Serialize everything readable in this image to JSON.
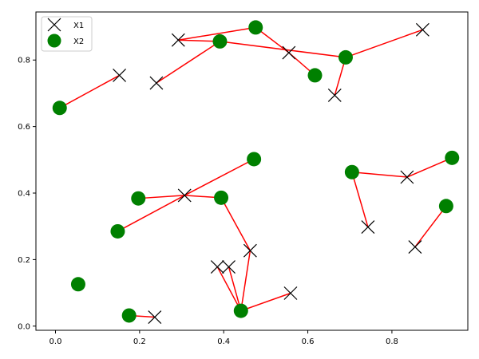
{
  "chart_data": {
    "type": "scatter",
    "xlim": [
      -0.0465,
      0.9805
    ],
    "ylim": [
      -0.0125,
      0.9445
    ],
    "grid": false,
    "legend_placement": "top-left",
    "x_ticks": [
      "0.0",
      "0.2",
      "0.4",
      "0.6",
      "0.8"
    ],
    "y_ticks": [
      "0.0",
      "0.2",
      "0.4",
      "0.6",
      "0.8"
    ],
    "colors": {
      "x1": "#000000",
      "x2": "#008000",
      "link": "#ff0000",
      "axes": "#000000"
    },
    "series": [
      {
        "name": "X1",
        "marker": "x-marker",
        "points": [
          [
            0.292,
            0.86
          ],
          [
            0.152,
            0.754
          ],
          [
            0.24,
            0.731
          ],
          [
            0.555,
            0.822
          ],
          [
            0.664,
            0.694
          ],
          [
            0.873,
            0.891
          ],
          [
            0.836,
            0.448
          ],
          [
            0.743,
            0.298
          ],
          [
            0.855,
            0.238
          ],
          [
            0.307,
            0.393
          ],
          [
            0.463,
            0.227
          ],
          [
            0.385,
            0.178
          ],
          [
            0.412,
            0.178
          ],
          [
            0.559,
            0.099
          ],
          [
            0.236,
            0.027
          ]
        ]
      },
      {
        "name": "X2",
        "marker": "circle-marker",
        "points": [
          [
            0.01,
            0.656
          ],
          [
            0.391,
            0.856
          ],
          [
            0.476,
            0.898
          ],
          [
            0.617,
            0.754
          ],
          [
            0.69,
            0.808
          ],
          [
            0.705,
            0.463
          ],
          [
            0.943,
            0.506
          ],
          [
            0.929,
            0.361
          ],
          [
            0.472,
            0.502
          ],
          [
            0.197,
            0.384
          ],
          [
            0.394,
            0.386
          ],
          [
            0.148,
            0.285
          ],
          [
            0.054,
            0.126
          ],
          [
            0.175,
            0.032
          ],
          [
            0.441,
            0.046
          ]
        ]
      }
    ],
    "links": [
      [
        [
          0.01,
          0.656
        ],
        [
          0.152,
          0.754
        ]
      ],
      [
        [
          0.292,
          0.86
        ],
        [
          0.476,
          0.898
        ]
      ],
      [
        [
          0.292,
          0.86
        ],
        [
          0.391,
          0.856
        ]
      ],
      [
        [
          0.24,
          0.731
        ],
        [
          0.391,
          0.856
        ]
      ],
      [
        [
          0.476,
          0.898
        ],
        [
          0.555,
          0.822
        ]
      ],
      [
        [
          0.555,
          0.822
        ],
        [
          0.617,
          0.754
        ]
      ],
      [
        [
          0.391,
          0.856
        ],
        [
          0.69,
          0.808
        ]
      ],
      [
        [
          0.69,
          0.808
        ],
        [
          0.873,
          0.891
        ]
      ],
      [
        [
          0.69,
          0.808
        ],
        [
          0.664,
          0.694
        ]
      ],
      [
        [
          0.148,
          0.285
        ],
        [
          0.307,
          0.393
        ]
      ],
      [
        [
          0.197,
          0.384
        ],
        [
          0.307,
          0.393
        ]
      ],
      [
        [
          0.307,
          0.393
        ],
        [
          0.472,
          0.502
        ]
      ],
      [
        [
          0.307,
          0.393
        ],
        [
          0.394,
          0.386
        ]
      ],
      [
        [
          0.394,
          0.386
        ],
        [
          0.463,
          0.227
        ]
      ],
      [
        [
          0.463,
          0.227
        ],
        [
          0.441,
          0.046
        ]
      ],
      [
        [
          0.441,
          0.046
        ],
        [
          0.385,
          0.178
        ]
      ],
      [
        [
          0.441,
          0.046
        ],
        [
          0.412,
          0.178
        ]
      ],
      [
        [
          0.441,
          0.046
        ],
        [
          0.559,
          0.099
        ]
      ],
      [
        [
          0.175,
          0.032
        ],
        [
          0.236,
          0.027
        ]
      ],
      [
        [
          0.705,
          0.463
        ],
        [
          0.743,
          0.298
        ]
      ],
      [
        [
          0.705,
          0.463
        ],
        [
          0.836,
          0.448
        ]
      ],
      [
        [
          0.836,
          0.448
        ],
        [
          0.943,
          0.506
        ]
      ],
      [
        [
          0.855,
          0.238
        ],
        [
          0.929,
          0.361
        ]
      ]
    ]
  }
}
